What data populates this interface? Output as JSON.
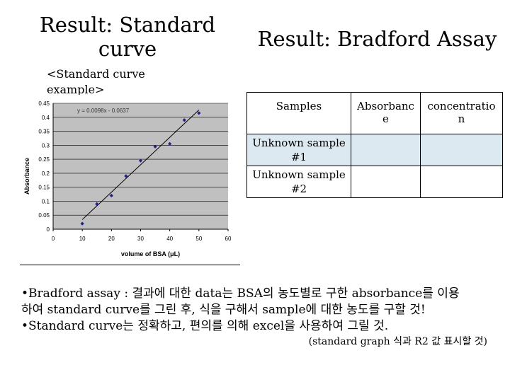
{
  "titles": {
    "left_line1": "Result: Standard",
    "left_line2": "curve",
    "right": "Result: Bradford Assay"
  },
  "example_label_line1": "<Standard curve",
  "example_label_line2": "example>",
  "chart_data": {
    "type": "scatter",
    "title": "",
    "xlabel": "volume of BSA (μL)",
    "ylabel": "Absorbance",
    "xlim": [
      0,
      60
    ],
    "ylim": [
      0,
      0.45
    ],
    "x_ticks": [
      0,
      10,
      20,
      30,
      40,
      50,
      60
    ],
    "y_ticks": [
      0,
      0.05,
      0.1,
      0.15,
      0.2,
      0.25,
      0.3,
      0.35,
      0.4,
      0.45
    ],
    "x_tick_labels": [
      "0",
      "10",
      "20",
      "30",
      "40",
      "50",
      "60"
    ],
    "y_tick_labels": [
      "0",
      "0.05",
      "0.1",
      "0.15",
      "0.2",
      "0.25",
      "0.3",
      "0.35",
      "0.4",
      "0.45"
    ],
    "grid": "horizontal",
    "series": [
      {
        "x": [
          10,
          15,
          20,
          25,
          30,
          35,
          40,
          45,
          50
        ],
        "y": [
          0.02,
          0.09,
          0.12,
          0.19,
          0.245,
          0.295,
          0.305,
          0.39,
          0.415
        ],
        "color": "#1f1f8f"
      }
    ],
    "trendline": {
      "slope": 0.0098,
      "intercept": -0.0637,
      "x_range": [
        10,
        50
      ],
      "equation_label": "y = 0.0098x - 0.0637"
    },
    "plot_background": "#c0c0c0"
  },
  "table": {
    "headers": [
      "Samples",
      "Absorbanc\ne",
      "concentratio\nn"
    ],
    "rows": [
      {
        "sample": "Unknown sample\n#1",
        "absorbance": "",
        "concentration": ""
      },
      {
        "sample": "Unknown sample\n#2",
        "absorbance": "",
        "concentration": ""
      }
    ]
  },
  "notes": {
    "line1": "•Bradford assay : 결과에 대한 data는 BSA의 농도별로 구한 absorbance를 이용",
    "line2": "하여 standard curve를 그린 후,  식을 구해서 sample에 대한 농도를 구할 것!",
    "line3": "•Standard curve는 정확하고, 편의를 의해 excel을 사용하여 그릴 것.",
    "line4": "(standard graph 식과 R2 값 표시할 것)"
  }
}
